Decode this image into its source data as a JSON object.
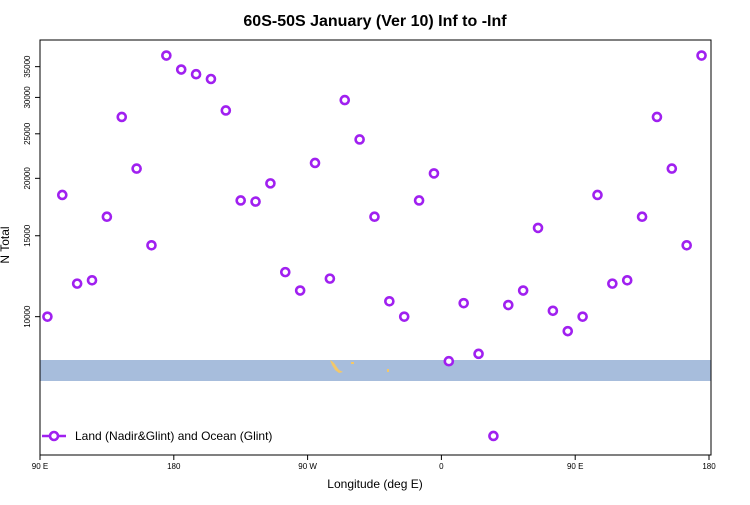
{
  "chart_data": {
    "type": "scatter",
    "title": "60S-50S January (Ver 10)   Inf to -Inf",
    "x_label": "Longitude (deg E)",
    "y_label": "N Total",
    "xlim": [
      90,
      540
    ],
    "xticks": [
      {
        "value": 90,
        "label": "90 E"
      },
      180,
      {
        "value": 270,
        "label": "90 W"
      },
      {
        "value": 360,
        "label": "0"
      },
      {
        "value": 450,
        "label": "90 E"
      },
      {
        "value": 540,
        "label": "180"
      }
    ],
    "ylim": [
      5000,
      40000
    ],
    "yticks": [
      10000,
      15000,
      20000,
      25000,
      30000,
      35000
    ],
    "log_y": true,
    "legend": "lower left",
    "series": [
      {
        "name": "Land (Nadir&Glint) and Ocean (Glint)",
        "color": "#a020f0",
        "x": [
          95,
          105,
          115,
          125,
          135,
          145,
          155,
          165,
          175,
          185,
          195,
          205,
          215,
          225,
          235,
          245,
          255,
          265,
          275,
          285,
          295,
          305,
          315,
          325,
          335,
          345,
          355,
          365,
          375,
          385,
          395,
          405,
          415,
          425,
          435,
          445,
          455,
          465,
          475,
          485,
          495,
          505,
          515,
          525,
          535
        ],
        "values": [
          10000,
          18400,
          11800,
          12000,
          16500,
          27200,
          21000,
          14300,
          37000,
          34500,
          33700,
          32900,
          28100,
          17900,
          17800,
          19500,
          12500,
          11400,
          21600,
          12100,
          29600,
          24300,
          16500,
          10800,
          10000,
          17900,
          20500,
          8000,
          10700,
          8300,
          5500,
          10600,
          11400,
          15600,
          10300,
          9300,
          10000,
          18400,
          11800,
          12000,
          16500,
          27200,
          21000,
          14300,
          37000
        ]
      }
    ]
  }
}
